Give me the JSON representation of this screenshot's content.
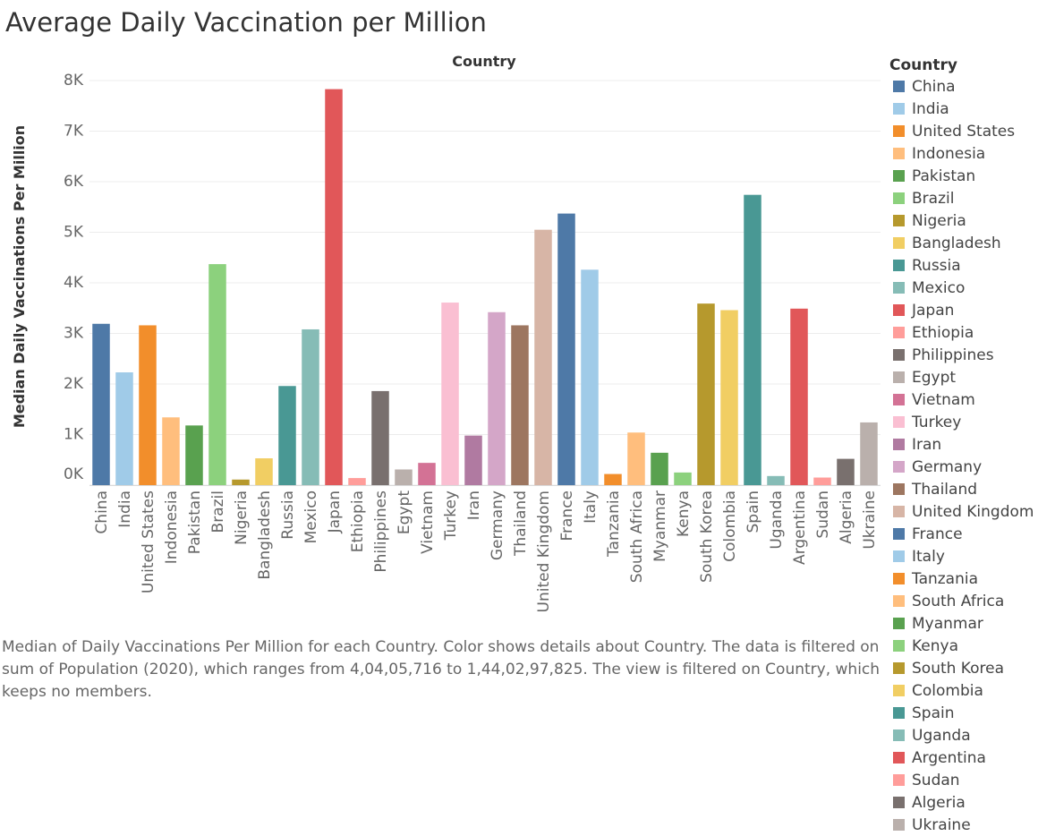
{
  "title": "Average Daily Vaccination per Million",
  "caption": "Median of Daily Vaccinations Per Million for each Country.  Color shows details about Country. The data is filtered on sum of Population (2020), which ranges from 4,04,05,716 to 1,44,02,97,825. The view is filtered on Country, which keeps no members.",
  "legend": {
    "title": "Country",
    "items": [
      {
        "label": "China",
        "color": "#4e79a7"
      },
      {
        "label": "India",
        "color": "#a0cbe8"
      },
      {
        "label": "United States",
        "color": "#f28e2b"
      },
      {
        "label": "Indonesia",
        "color": "#ffbe7d"
      },
      {
        "label": "Pakistan",
        "color": "#59a14f"
      },
      {
        "label": "Brazil",
        "color": "#8cd17d"
      },
      {
        "label": "Nigeria",
        "color": "#b6992d"
      },
      {
        "label": "Bangladesh",
        "color": "#f1ce63"
      },
      {
        "label": "Russia",
        "color": "#499894"
      },
      {
        "label": "Mexico",
        "color": "#86bcb6"
      },
      {
        "label": "Japan",
        "color": "#e15759"
      },
      {
        "label": "Ethiopia",
        "color": "#ff9d9a"
      },
      {
        "label": "Philippines",
        "color": "#79706e"
      },
      {
        "label": "Egypt",
        "color": "#bab0ac"
      },
      {
        "label": "Vietnam",
        "color": "#d37295"
      },
      {
        "label": "Turkey",
        "color": "#fabfd2"
      },
      {
        "label": "Iran",
        "color": "#b07aa1"
      },
      {
        "label": "Germany",
        "color": "#d4a6c8"
      },
      {
        "label": "Thailand",
        "color": "#9d7660"
      },
      {
        "label": "United Kingdom",
        "color": "#d7b5a6"
      },
      {
        "label": "France",
        "color": "#4e79a7"
      },
      {
        "label": "Italy",
        "color": "#a0cbe8"
      },
      {
        "label": "Tanzania",
        "color": "#f28e2b"
      },
      {
        "label": "South Africa",
        "color": "#ffbe7d"
      },
      {
        "label": "Myanmar",
        "color": "#59a14f"
      },
      {
        "label": "Kenya",
        "color": "#8cd17d"
      },
      {
        "label": "South Korea",
        "color": "#b6992d"
      },
      {
        "label": "Colombia",
        "color": "#f1ce63"
      },
      {
        "label": "Spain",
        "color": "#499894"
      },
      {
        "label": "Uganda",
        "color": "#86bcb6"
      },
      {
        "label": "Argentina",
        "color": "#e15759"
      },
      {
        "label": "Sudan",
        "color": "#ff9d9a"
      },
      {
        "label": "Algeria",
        "color": "#79706e"
      },
      {
        "label": "Ukraine",
        "color": "#bab0ac"
      }
    ]
  },
  "chart_data": {
    "type": "bar",
    "title": "Average Daily Vaccination per Million",
    "xlabel": "Country",
    "ylabel": "Median Daily Vaccinations Per Million",
    "ylim": [
      0,
      8000
    ],
    "yticks": [
      0,
      1000,
      2000,
      3000,
      4000,
      5000,
      6000,
      7000,
      8000
    ],
    "ytick_labels": [
      "0K",
      "1K",
      "2K",
      "3K",
      "4K",
      "5K",
      "6K",
      "7K",
      "8K"
    ],
    "grid": true,
    "legend_position": "right",
    "categories": [
      "China",
      "India",
      "United States",
      "Indonesia",
      "Pakistan",
      "Brazil",
      "Nigeria",
      "Bangladesh",
      "Russia",
      "Mexico",
      "Japan",
      "Ethiopia",
      "Philippines",
      "Egypt",
      "Vietnam",
      "Turkey",
      "Iran",
      "Germany",
      "Thailand",
      "United Kingdom",
      "France",
      "Italy",
      "Tanzania",
      "South Africa",
      "Myanmar",
      "Kenya",
      "South Korea",
      "Colombia",
      "Spain",
      "Uganda",
      "Argentina",
      "Sudan",
      "Algeria",
      "Ukraine"
    ],
    "values": [
      3190,
      2230,
      3160,
      1340,
      1180,
      4370,
      110,
      530,
      1960,
      3080,
      7830,
      140,
      1860,
      310,
      440,
      3610,
      980,
      3420,
      3160,
      5050,
      5370,
      4260,
      220,
      1040,
      640,
      250,
      3590,
      3460,
      5740,
      180,
      3490,
      150,
      520,
      1240
    ],
    "colors": [
      "#4e79a7",
      "#a0cbe8",
      "#f28e2b",
      "#ffbe7d",
      "#59a14f",
      "#8cd17d",
      "#b6992d",
      "#f1ce63",
      "#499894",
      "#86bcb6",
      "#e15759",
      "#ff9d9a",
      "#79706e",
      "#bab0ac",
      "#d37295",
      "#fabfd2",
      "#b07aa1",
      "#d4a6c8",
      "#9d7660",
      "#d7b5a6",
      "#4e79a7",
      "#a0cbe8",
      "#f28e2b",
      "#ffbe7d",
      "#59a14f",
      "#8cd17d",
      "#b6992d",
      "#f1ce63",
      "#499894",
      "#86bcb6",
      "#e15759",
      "#ff9d9a",
      "#79706e",
      "#bab0ac"
    ]
  }
}
